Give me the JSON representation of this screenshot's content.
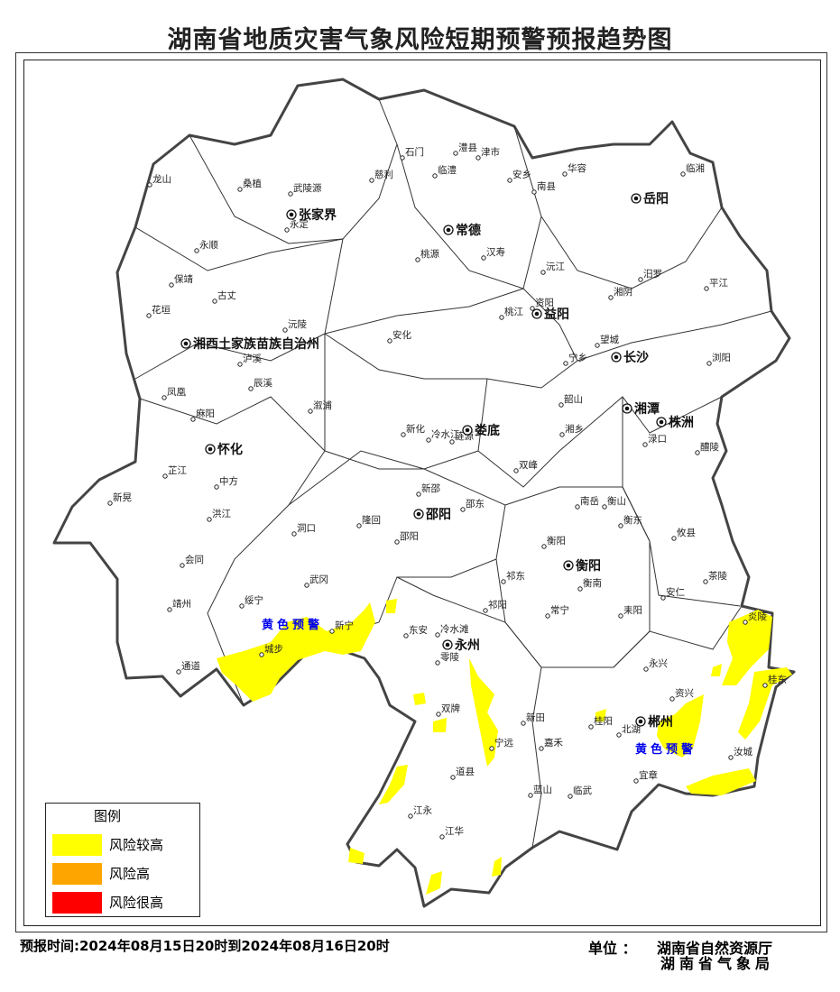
{
  "title": "湖南省地质灾害气象风险短期预警预报趋势图",
  "colors": {
    "risk_higher": "#ffff00",
    "risk_high": "#ffa500",
    "risk_very_high": "#ff0000",
    "warning_label": "#0000ee"
  },
  "legend": {
    "title": "图例",
    "items": [
      {
        "label": "风险较高",
        "color": "#ffff00"
      },
      {
        "label": "风险高",
        "color": "#ffa500"
      },
      {
        "label": "风险很高",
        "color": "#ff0000"
      }
    ]
  },
  "warnings": [
    "黄色预警",
    "黄色预警"
  ],
  "cities": [
    "张家界",
    "常德",
    "岳阳",
    "益阳",
    "湘西土家族苗族自治州",
    "长沙",
    "湘潭",
    "株洲",
    "娄底",
    "怀化",
    "邵阳",
    "衡阳",
    "永州",
    "郴州"
  ],
  "counties": [
    "龙山",
    "桑植",
    "武陵源",
    "慈利",
    "石门",
    "澧县",
    "津市",
    "临澧",
    "安乡",
    "华容",
    "南县",
    "临湘",
    "永定",
    "永顺",
    "桃源",
    "汉寿",
    "沅江",
    "汨罗",
    "平江",
    "湘阴",
    "保靖",
    "古丈",
    "花垣",
    "资阳",
    "桃江",
    "沅陵",
    "安化",
    "望城",
    "宁乡",
    "浏阳",
    "泸溪",
    "辰溪",
    "凤凰",
    "溆浦",
    "韶山",
    "湘乡",
    "麻阳",
    "新化",
    "冷水江",
    "涟源",
    "醴陵",
    "渌口",
    "双峰",
    "芷江",
    "中方",
    "新晃",
    "新邵",
    "邵东",
    "南岳",
    "衡山",
    "衡东",
    "攸县",
    "洪江",
    "洞口",
    "隆回",
    "邵阳",
    "衡阳",
    "衡南",
    "会同",
    "茶陵",
    "祁东",
    "武冈",
    "安仁",
    "靖州",
    "绥宁",
    "新宁",
    "城步",
    "东安",
    "冷水滩",
    "祁阳",
    "常宁",
    "耒阳",
    "炎陵",
    "零陵",
    "永兴",
    "通道",
    "资兴",
    "桂东",
    "双牌",
    "新田",
    "桂阳",
    "北湖",
    "宁远",
    "嘉禾",
    "汝城",
    "宜章",
    "道县",
    "蓝山",
    "临武",
    "江永",
    "江华"
  ],
  "footer": {
    "time": "预报时间:2024年08月15日20时到2024年08月16日20时",
    "unit_label": "单位 ：",
    "unit_1": "湖南省自然资源厅",
    "unit_2": "湖南省气象局"
  }
}
